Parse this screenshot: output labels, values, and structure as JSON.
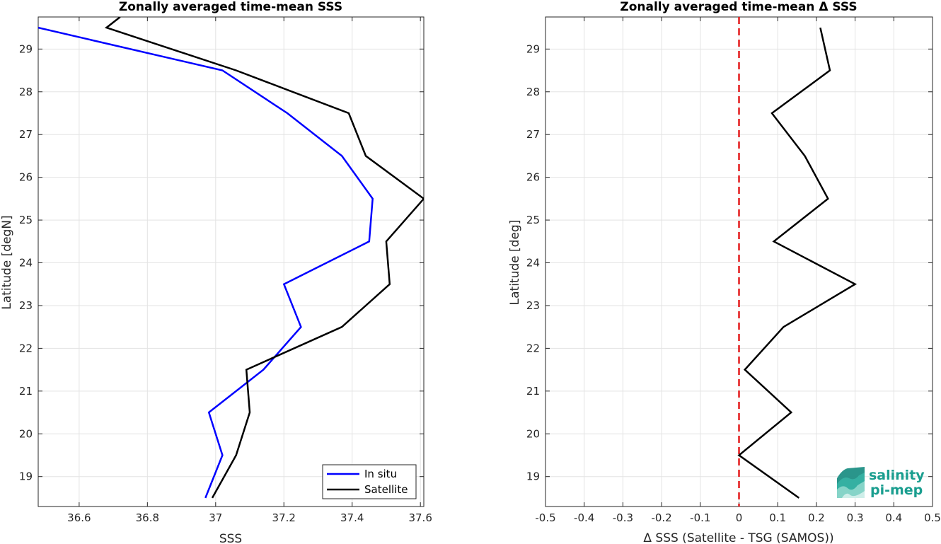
{
  "chart_data": [
    {
      "type": "line",
      "title": "Zonally averaged time-mean SSS",
      "xlabel": "SSS",
      "ylabel": "Latitude [degN]",
      "xlim": [
        36.48,
        37.61
      ],
      "ylim": [
        18.3,
        29.75
      ],
      "xticks": [
        "36.6",
        "36.8",
        "37",
        "37.2",
        "37.4",
        "37.6"
      ],
      "xtick_values": [
        36.6,
        36.8,
        37.0,
        37.2,
        37.4,
        37.6
      ],
      "yticks": [
        "19",
        "20",
        "21",
        "22",
        "23",
        "24",
        "25",
        "26",
        "27",
        "28",
        "29"
      ],
      "ytick_values": [
        19,
        20,
        21,
        22,
        23,
        24,
        25,
        26,
        27,
        28,
        29
      ],
      "grid": true,
      "legend_position": "bottom-right",
      "series": [
        {
          "name": "In situ",
          "color": "#0000ff",
          "points": [
            {
              "x": 36.97,
              "y": 18.5
            },
            {
              "x": 37.02,
              "y": 19.5
            },
            {
              "x": 36.98,
              "y": 20.5
            },
            {
              "x": 37.14,
              "y": 21.5
            },
            {
              "x": 37.25,
              "y": 22.5
            },
            {
              "x": 37.2,
              "y": 23.5
            },
            {
              "x": 37.45,
              "y": 24.5
            },
            {
              "x": 37.46,
              "y": 25.5
            },
            {
              "x": 37.37,
              "y": 26.5
            },
            {
              "x": 37.21,
              "y": 27.5
            },
            {
              "x": 37.02,
              "y": 28.5
            },
            {
              "x": 36.48,
              "y": 29.5
            }
          ]
        },
        {
          "name": "Satellite",
          "color": "#000000",
          "points": [
            {
              "x": 36.99,
              "y": 18.5
            },
            {
              "x": 37.06,
              "y": 19.5
            },
            {
              "x": 37.1,
              "y": 20.5
            },
            {
              "x": 37.09,
              "y": 21.5
            },
            {
              "x": 37.37,
              "y": 22.5
            },
            {
              "x": 37.51,
              "y": 23.5
            },
            {
              "x": 37.5,
              "y": 24.5
            },
            {
              "x": 37.61,
              "y": 25.5
            },
            {
              "x": 37.44,
              "y": 26.5
            },
            {
              "x": 37.39,
              "y": 27.5
            },
            {
              "x": 37.06,
              "y": 28.5
            },
            {
              "x": 36.68,
              "y": 29.5
            },
            {
              "x": 36.72,
              "y": 29.75
            }
          ]
        }
      ]
    },
    {
      "type": "line",
      "title": "Zonally averaged time-mean Δ SSS",
      "xlabel": "Δ SSS (Satellite - TSG (SAMOS))",
      "ylabel": "Latitude [deg]",
      "xlim": [
        -0.5,
        0.5
      ],
      "ylim": [
        18.3,
        29.75
      ],
      "xticks": [
        "-0.5",
        "-0.4",
        "-0.3",
        "-0.2",
        "-0.1",
        "0",
        "0.1",
        "0.2",
        "0.3",
        "0.4",
        "0.5"
      ],
      "xtick_values": [
        -0.5,
        -0.4,
        -0.3,
        -0.2,
        -0.1,
        0,
        0.1,
        0.2,
        0.3,
        0.4,
        0.5
      ],
      "yticks": [
        "19",
        "20",
        "21",
        "22",
        "23",
        "24",
        "25",
        "26",
        "27",
        "28",
        "29"
      ],
      "ytick_values": [
        19,
        20,
        21,
        22,
        23,
        24,
        25,
        26,
        27,
        28,
        29
      ],
      "grid": true,
      "zero_line": {
        "x": 0,
        "color": "#e31a1c",
        "style": "dashed"
      },
      "series": [
        {
          "color": "#000000",
          "points": [
            {
              "x": 0.155,
              "y": 18.5
            },
            {
              "x": 0.0,
              "y": 19.5
            },
            {
              "x": 0.135,
              "y": 20.5
            },
            {
              "x": 0.015,
              "y": 21.5
            },
            {
              "x": 0.115,
              "y": 22.5
            },
            {
              "x": 0.3,
              "y": 23.5
            },
            {
              "x": 0.09,
              "y": 24.5
            },
            {
              "x": 0.23,
              "y": 25.5
            },
            {
              "x": 0.17,
              "y": 26.5
            },
            {
              "x": 0.085,
              "y": 27.5
            },
            {
              "x": 0.235,
              "y": 28.5
            },
            {
              "x": 0.21,
              "y": 29.5
            }
          ]
        }
      ]
    }
  ],
  "logo": {
    "line1": "salinity",
    "line2": "pi-mep",
    "color": "#1a9e8f"
  }
}
